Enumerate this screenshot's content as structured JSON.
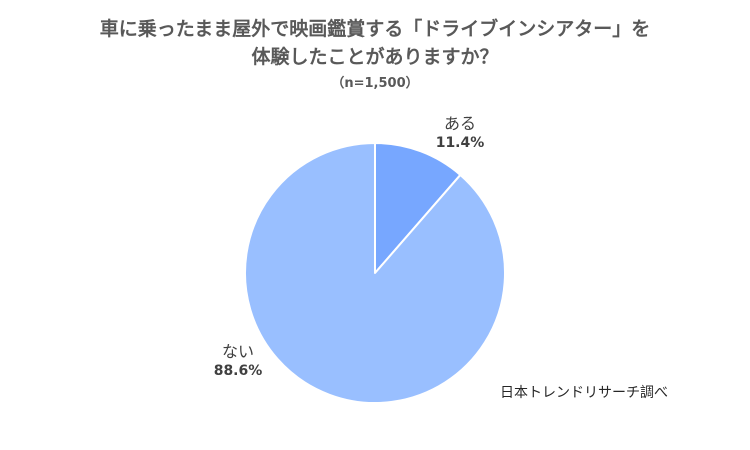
{
  "chart_data": {
    "type": "pie",
    "title_lines": [
      "車に乗ったまま屋外で映画鑑賞する「ドライブインシアター」を",
      "体験したことがありますか？"
    ],
    "subtitle": "（n=1,500）",
    "categories": [
      "ある",
      "ない"
    ],
    "values": [
      11.4,
      88.6
    ],
    "value_labels": [
      "11.4%",
      "88.6%"
    ],
    "colors": [
      "#77a7ff",
      "#99bfff"
    ],
    "start_angle_deg": 0,
    "direction": "clockwise",
    "legend": "none",
    "source_note": "日本トレンドリサーチ調べ"
  }
}
